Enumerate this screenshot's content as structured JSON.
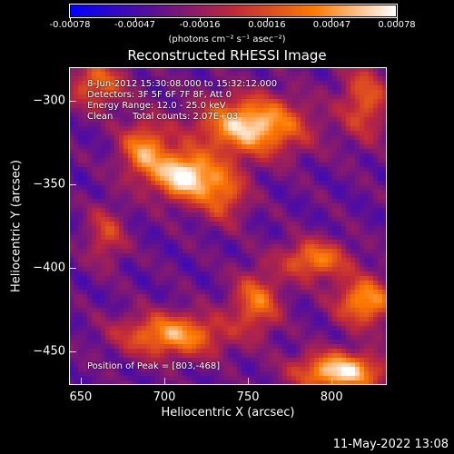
{
  "chart_data": {
    "type": "heatmap",
    "title": "Reconstructed RHESSI Image",
    "colorbar": {
      "ticks": [
        "-0.00078",
        "-0.00047",
        "-0.00016",
        "0.00016",
        "0.00047",
        "0.00078"
      ],
      "tick_values": [
        -0.00078,
        -0.00047,
        -0.00016,
        0.00016,
        0.00047,
        0.00078
      ],
      "range": [
        -0.00078,
        0.00078
      ],
      "unit_label": "(photons cm⁻² s⁻¹ asec⁻²)",
      "colormap": [
        "#0000ff",
        "#5a0f96",
        "#c0283a",
        "#ff7a00",
        "#ffffff"
      ]
    },
    "xlabel": "Heliocentric X (arcsec)",
    "ylabel": "Heliocentric Y (arcsec)",
    "xlim": [
      643,
      833
    ],
    "ylim": [
      -470,
      -280
    ],
    "x_ticks": [
      "650",
      "700",
      "750",
      "800"
    ],
    "x_tick_values": [
      650,
      700,
      750,
      800
    ],
    "y_ticks": [
      "-300",
      "-350",
      "-400",
      "-450"
    ],
    "y_tick_values": [
      -300,
      -350,
      -400,
      -450
    ],
    "peak": [
      803,
      -468
    ],
    "bright_features": [
      {
        "x": 752,
        "y": -315,
        "intensity": 0.92,
        "sx": 22,
        "sy": 12
      },
      {
        "x": 712,
        "y": -345,
        "intensity": 1.0,
        "sx": 12,
        "sy": 10
      },
      {
        "x": 688,
        "y": -330,
        "intensity": 0.7,
        "sx": 10,
        "sy": 12
      },
      {
        "x": 735,
        "y": -355,
        "intensity": 0.55,
        "sx": 10,
        "sy": 12
      },
      {
        "x": 660,
        "y": -290,
        "intensity": 0.55,
        "sx": 12,
        "sy": 10
      },
      {
        "x": 705,
        "y": -440,
        "intensity": 0.75,
        "sx": 22,
        "sy": 9
      },
      {
        "x": 755,
        "y": -420,
        "intensity": 0.6,
        "sx": 10,
        "sy": 12
      },
      {
        "x": 790,
        "y": -395,
        "intensity": 0.65,
        "sx": 14,
        "sy": 8
      },
      {
        "x": 820,
        "y": -420,
        "intensity": 0.75,
        "sx": 12,
        "sy": 10
      },
      {
        "x": 805,
        "y": -462,
        "intensity": 0.95,
        "sx": 18,
        "sy": 8
      },
      {
        "x": 820,
        "y": -300,
        "intensity": 0.5,
        "sx": 10,
        "sy": 16
      },
      {
        "x": 665,
        "y": -380,
        "intensity": 0.4,
        "sx": 8,
        "sy": 12
      }
    ]
  },
  "info": {
    "time_range": "8-Jun-2012 15:30:08.000 to 15:32:12.000",
    "detectors": "Detectors: 3F 5F 6F 7F 8F, Att 0",
    "energy": "Energy Range: 12.0 - 25.0 keV",
    "method": "Clean",
    "counts": "Total counts: 2.07E+03",
    "peak": "Position of Peak = [803,-468]"
  },
  "timestamp": "11-May-2022 13:08"
}
